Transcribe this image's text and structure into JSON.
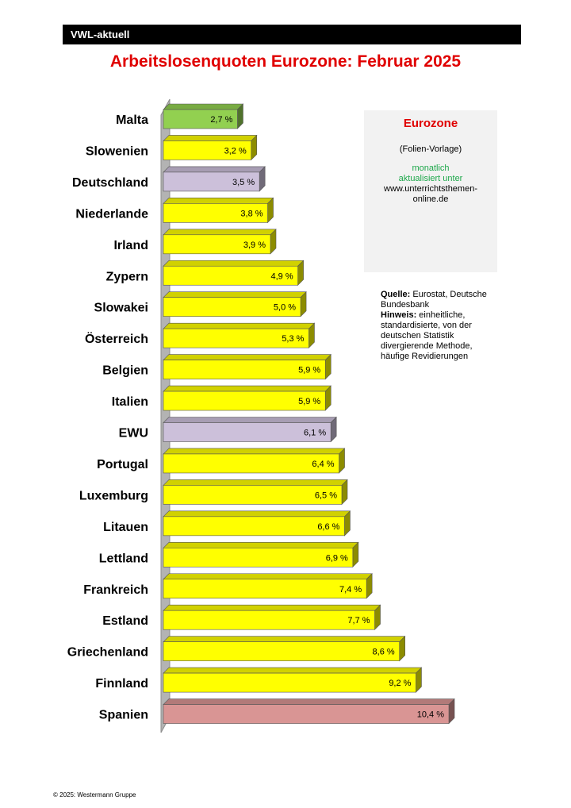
{
  "header": {
    "label": "VWL-aktuell"
  },
  "title": "Arbeitslosenquoten Eurozone: Februar 2025",
  "info_box": {
    "title": "Eurozone",
    "subtitle": "(Folien-Vorlage)",
    "update_line1": "monatlich",
    "update_line2": "aktualisiert unter",
    "url_line1": "www.unterrichtsthemen-",
    "url_line2": "online.de"
  },
  "notes": {
    "source_label": "Quelle:",
    "source_text": "Eurostat, Deutsche Bundesbank",
    "hint_label": "Hinweis:",
    "hint_text": "einheitliche, standardisierte, von der deutschen Statistik divergierende Methode, häufige Revidierungen"
  },
  "footer": "© 2025: Westermann Gruppe",
  "colors": {
    "default": "#ffff00",
    "malta": "#92d050",
    "reference": "#ccc0da",
    "max": "#d99594"
  },
  "chart_data": {
    "type": "bar",
    "orientation": "horizontal",
    "categories": [
      "Malta",
      "Slowenien",
      "Deutschland",
      "Niederlande",
      "Irland",
      "Zypern",
      "Slowakei",
      "Österreich",
      "Belgien",
      "Italien",
      "EWU",
      "Portugal",
      "Luxemburg",
      "Litauen",
      "Lettland",
      "Frankreich",
      "Estland",
      "Griechenland",
      "Finnland",
      "Spanien"
    ],
    "values": [
      2.7,
      3.2,
      3.5,
      3.8,
      3.9,
      4.9,
      5.0,
      5.3,
      5.9,
      5.9,
      6.1,
      6.4,
      6.5,
      6.6,
      6.9,
      7.4,
      7.7,
      8.6,
      9.2,
      10.4
    ],
    "labels": [
      "2,7 %",
      "3,2 %",
      "3,5 %",
      "3,8 %",
      "3,9 %",
      "4,9 %",
      "5,0 %",
      "5,3 %",
      "5,9 %",
      "5,9 %",
      "6,1 %",
      "6,4 %",
      "6,5 %",
      "6,6 %",
      "6,9 %",
      "7,4 %",
      "7,7 %",
      "8,6 %",
      "9,2 %",
      "10,4 %"
    ],
    "bar_colors": [
      "#92d050",
      "#ffff00",
      "#ccc0da",
      "#ffff00",
      "#ffff00",
      "#ffff00",
      "#ffff00",
      "#ffff00",
      "#ffff00",
      "#ffff00",
      "#ccc0da",
      "#ffff00",
      "#ffff00",
      "#ffff00",
      "#ffff00",
      "#ffff00",
      "#ffff00",
      "#ffff00",
      "#ffff00",
      "#d99594"
    ],
    "xlim": [
      0,
      10.4
    ],
    "grid": false,
    "legend": false
  }
}
